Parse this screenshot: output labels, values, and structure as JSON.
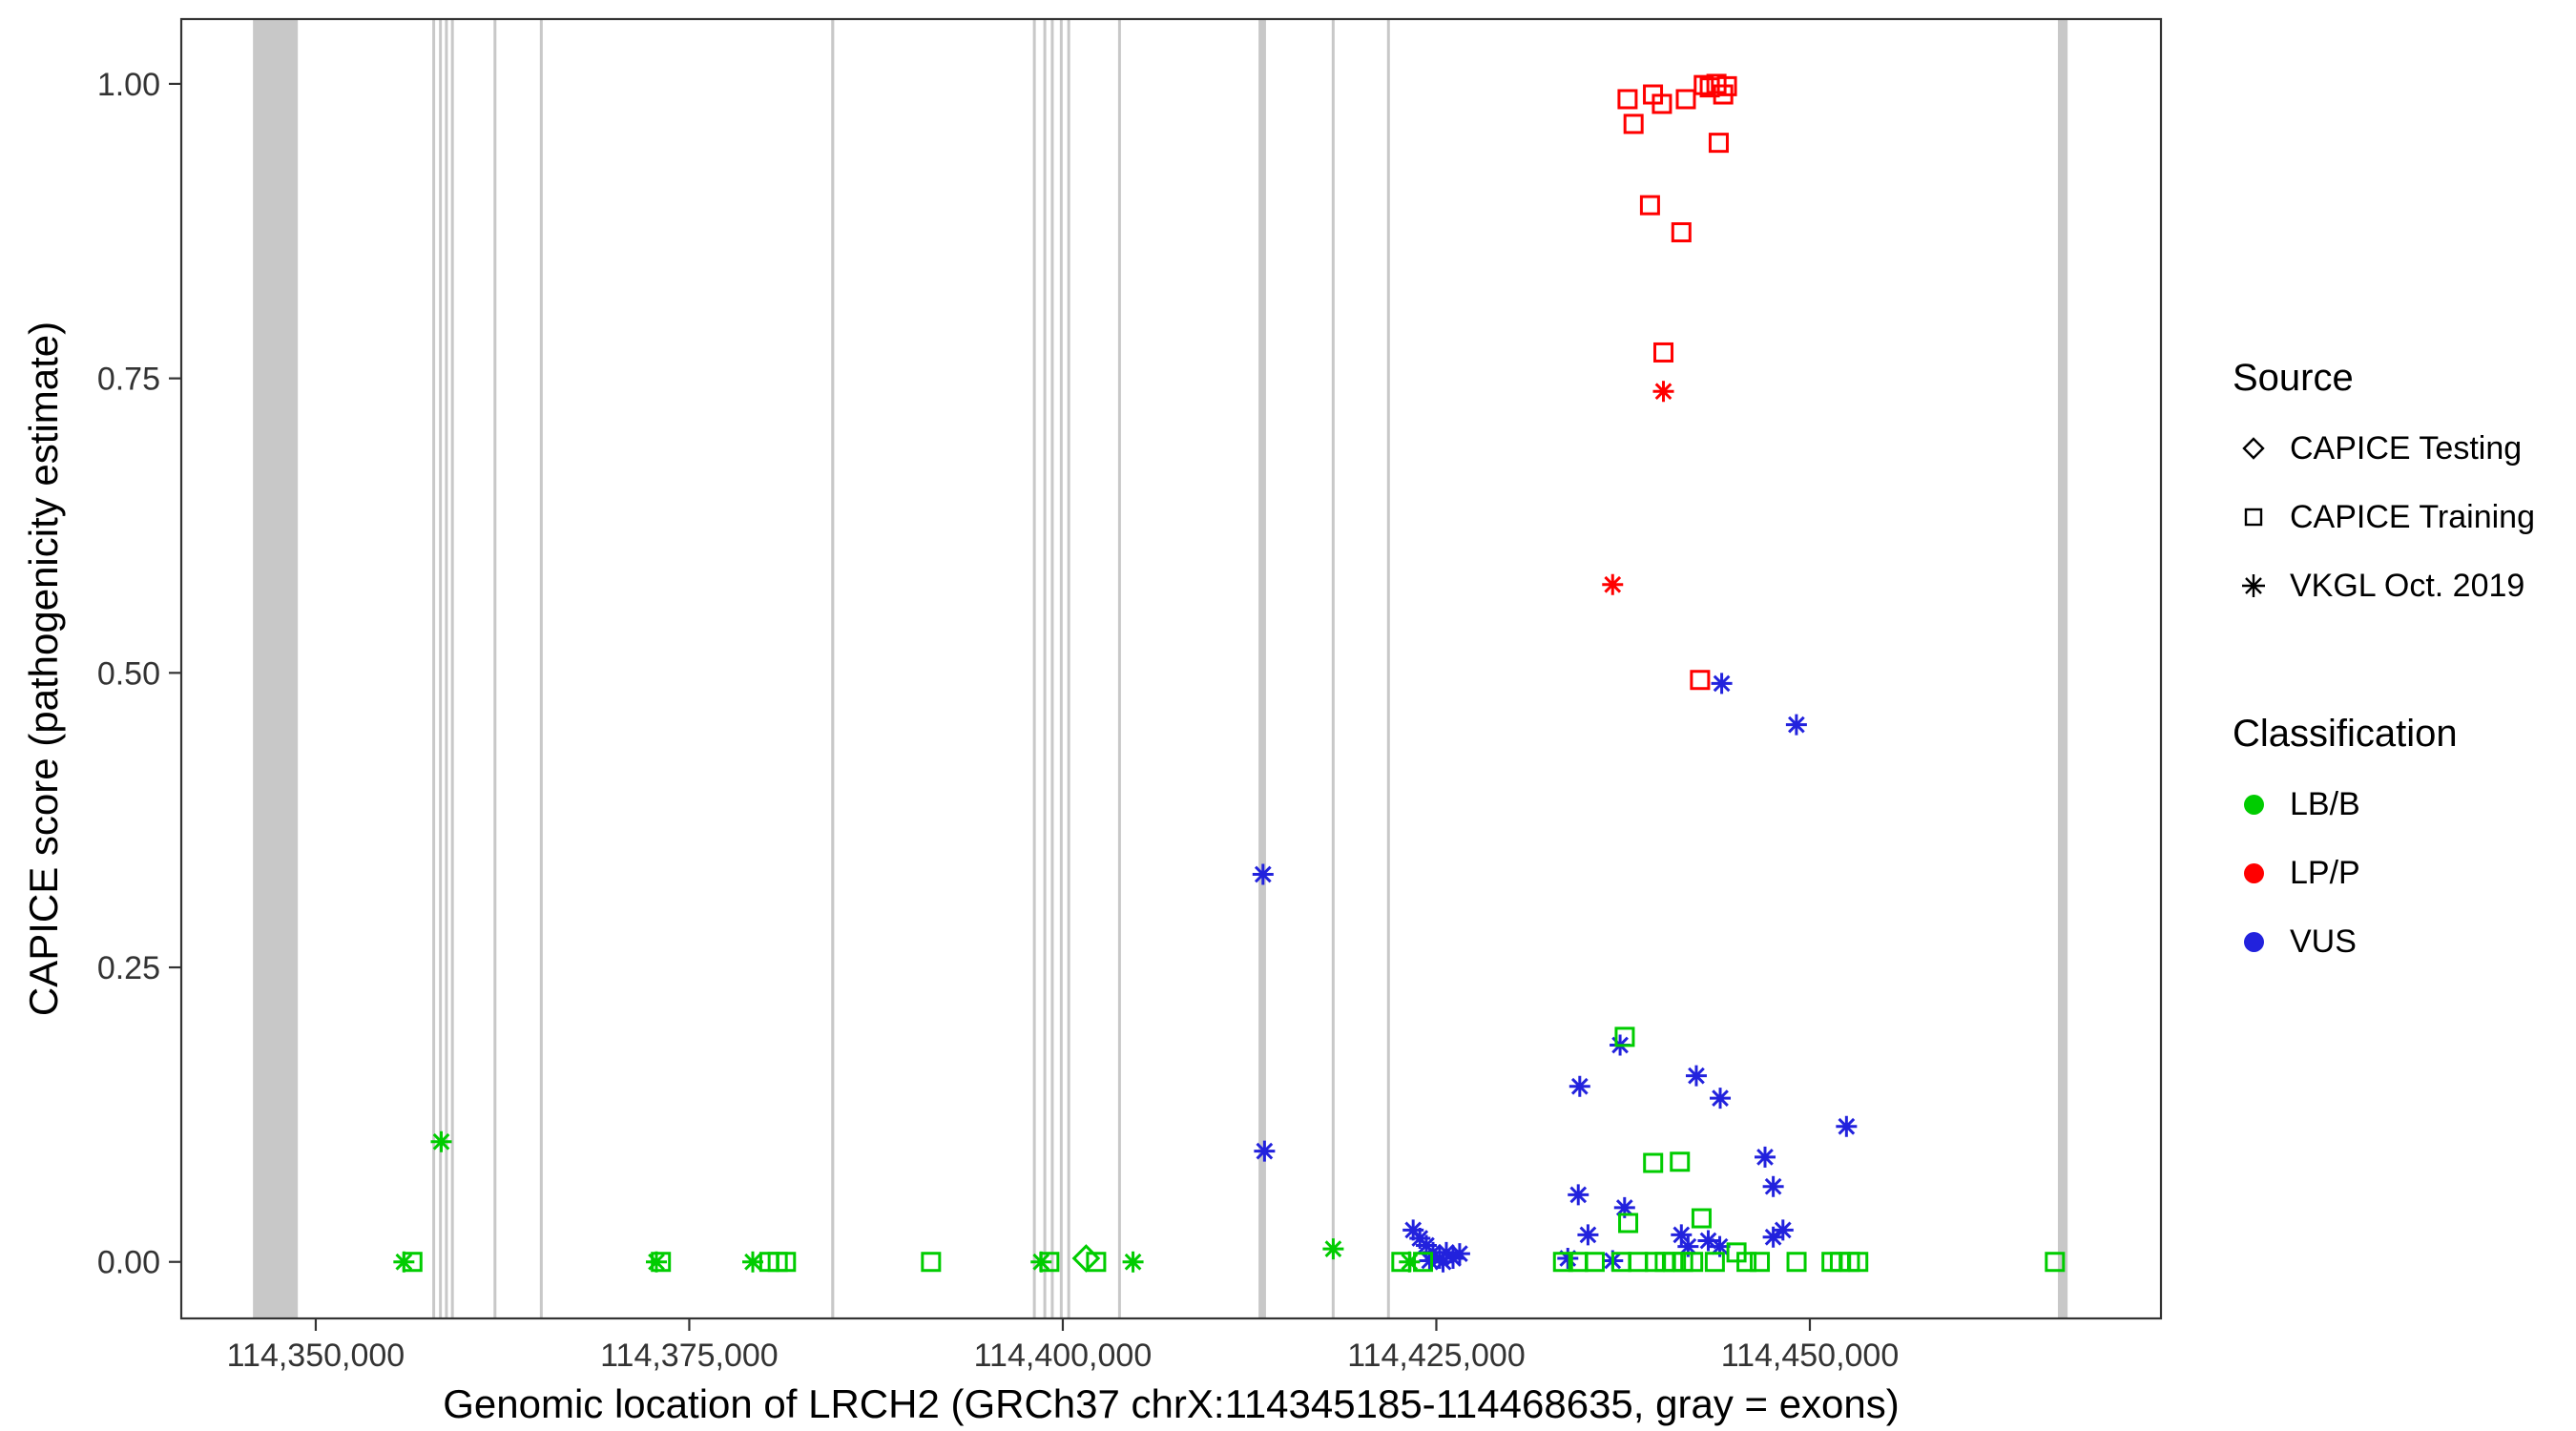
{
  "chart_data": {
    "type": "scatter",
    "title": "",
    "xlabel": "Genomic location of LRCH2 (GRCh37 chrX:114345185-114468635, gray = exons)",
    "ylabel": "CAPICE score (pathogenicity estimate)",
    "xlim": [
      114341000,
      114473500
    ],
    "ylim": [
      -0.048,
      1.055
    ],
    "grid": "off",
    "legend_position": "right",
    "x_ticks": [
      {
        "value": 114350000,
        "label": "114,350,000"
      },
      {
        "value": 114375000,
        "label": "114,375,000"
      },
      {
        "value": 114400000,
        "label": "114,400,000"
      },
      {
        "value": 114425000,
        "label": "114,425,000"
      },
      {
        "value": 114450000,
        "label": "114,450,000"
      }
    ],
    "y_ticks": [
      {
        "value": 0.0,
        "label": "0.00"
      },
      {
        "value": 0.25,
        "label": "0.25"
      },
      {
        "value": 0.5,
        "label": "0.50"
      },
      {
        "value": 0.75,
        "label": "0.75"
      },
      {
        "value": 1.0,
        "label": "1.00"
      }
    ],
    "exon_color": "#c8c8c8",
    "colors": {
      "LB/B": "#00CC00",
      "LP/P": "#FF0000",
      "VUS": "#2222DD"
    },
    "legend": {
      "source": {
        "title": "Source",
        "items": [
          {
            "label": "CAPICE Testing",
            "shape": "diamond"
          },
          {
            "label": "CAPICE Training",
            "shape": "square"
          },
          {
            "label": "VKGL Oct. 2019",
            "shape": "asterisk"
          }
        ]
      },
      "classification": {
        "title": "Classification",
        "items": [
          {
            "label": "LB/B",
            "color_key": "LB/B"
          },
          {
            "label": "LP/P",
            "color_key": "LP/P"
          },
          {
            "label": "VUS",
            "color_key": "VUS"
          }
        ]
      }
    },
    "exons": [
      [
        114345800,
        114348800
      ],
      [
        114357800,
        114357950
      ],
      [
        114358250,
        114358400
      ],
      [
        114358650,
        114358800
      ],
      [
        114359050,
        114359200
      ],
      [
        114361900,
        114362050
      ],
      [
        114365000,
        114365150
      ],
      [
        114384500,
        114384700
      ],
      [
        114398000,
        114398150
      ],
      [
        114398700,
        114398850
      ],
      [
        114399200,
        114399350
      ],
      [
        114399800,
        114399950
      ],
      [
        114400300,
        114400450
      ],
      [
        114403700,
        114403850
      ],
      [
        114413100,
        114413600
      ],
      [
        114418000,
        114418150
      ],
      [
        114421700,
        114421850
      ],
      [
        114466600,
        114467250
      ]
    ],
    "series": [
      {
        "name": "LP/P CAPICE Training",
        "shape": "square",
        "cls": "LP/P",
        "points": [
          [
            114437800,
            0.987
          ],
          [
            114438200,
            0.966
          ],
          [
            114439500,
            0.991
          ],
          [
            114440100,
            0.983
          ],
          [
            114441700,
            0.987
          ],
          [
            114442900,
            0.999
          ],
          [
            114443300,
            0.997
          ],
          [
            114443750,
            1.0
          ],
          [
            114444200,
            0.991
          ],
          [
            114444450,
            0.998
          ],
          [
            114443900,
            0.95
          ],
          [
            114439300,
            0.897
          ],
          [
            114441400,
            0.874
          ],
          [
            114440200,
            0.772
          ],
          [
            114442650,
            0.494
          ]
        ]
      },
      {
        "name": "LP/P VKGL Oct. 2019",
        "shape": "asterisk",
        "cls": "LP/P",
        "points": [
          [
            114440200,
            0.739
          ],
          [
            114436800,
            0.575
          ]
        ]
      },
      {
        "name": "VUS VKGL Oct. 2019",
        "shape": "asterisk",
        "cls": "VUS",
        "points": [
          [
            114444100,
            0.491
          ],
          [
            114449100,
            0.456
          ],
          [
            114413400,
            0.329
          ],
          [
            114413500,
            0.094
          ],
          [
            114437300,
            0.184
          ],
          [
            114434600,
            0.149
          ],
          [
            114442400,
            0.158
          ],
          [
            114444000,
            0.139
          ],
          [
            114452450,
            0.115
          ],
          [
            114447000,
            0.089
          ],
          [
            114447550,
            0.064
          ],
          [
            114434500,
            0.057
          ],
          [
            114437600,
            0.046
          ],
          [
            114441400,
            0.023
          ],
          [
            114435150,
            0.023
          ],
          [
            114433800,
            0.003
          ],
          [
            114436800,
            0.001
          ],
          [
            114443970,
            0.013
          ],
          [
            114443200,
            0.018
          ],
          [
            114447550,
            0.021
          ],
          [
            114448200,
            0.027
          ],
          [
            114423450,
            0.027
          ],
          [
            114423900,
            0.02
          ],
          [
            114424330,
            0.014
          ],
          [
            114424780,
            0.008
          ],
          [
            114425220,
            0.003
          ],
          [
            114425670,
            0.008
          ],
          [
            114426120,
            0.003
          ],
          [
            114426560,
            0.007
          ],
          [
            114424550,
            0.001
          ],
          [
            114425450,
            0.0
          ],
          [
            114441850,
            0.013
          ]
        ]
      },
      {
        "name": "LB/B VKGL Oct. 2019",
        "shape": "asterisk",
        "cls": "LB/B",
        "points": [
          [
            114358400,
            0.102
          ],
          [
            114355900,
            0.0
          ],
          [
            114372800,
            0.0
          ],
          [
            114379250,
            0.0
          ],
          [
            114398550,
            0.0
          ],
          [
            114404700,
            0.0
          ],
          [
            114418100,
            0.011
          ],
          [
            114423200,
            0.0
          ]
        ]
      },
      {
        "name": "LB/B CAPICE Training",
        "shape": "square",
        "cls": "LB/B",
        "points": [
          [
            114356470,
            0.0
          ],
          [
            114373100,
            0.0
          ],
          [
            114380360,
            0.0
          ],
          [
            114380920,
            0.0
          ],
          [
            114381470,
            0.0
          ],
          [
            114391180,
            0.0
          ],
          [
            114399100,
            0.0
          ],
          [
            114402230,
            0.0
          ],
          [
            114437610,
            0.191
          ],
          [
            114439510,
            0.084
          ],
          [
            114441300,
            0.085
          ],
          [
            114437840,
            0.033
          ],
          [
            114442750,
            0.037
          ],
          [
            114445090,
            0.008
          ],
          [
            114433480,
            0.0
          ],
          [
            114434490,
            0.0
          ],
          [
            114435600,
            0.0
          ],
          [
            114437390,
            0.0
          ],
          [
            114438500,
            0.0
          ],
          [
            114439620,
            0.0
          ],
          [
            114440290,
            0.0
          ],
          [
            114440850,
            0.0
          ],
          [
            114441520,
            0.0
          ],
          [
            114442190,
            0.0
          ],
          [
            114443640,
            0.0
          ],
          [
            114445760,
            0.0
          ],
          [
            114446650,
            0.0
          ],
          [
            114449110,
            0.0
          ],
          [
            114451450,
            0.0
          ],
          [
            114452010,
            0.0
          ],
          [
            114452680,
            0.0
          ],
          [
            114453240,
            0.0
          ],
          [
            114466400,
            0.0
          ],
          [
            114422660,
            0.0
          ],
          [
            114424110,
            0.0
          ]
        ]
      },
      {
        "name": "LB/B CAPICE Testing",
        "shape": "diamond",
        "cls": "LB/B",
        "points": [
          [
            114401560,
            0.003
          ]
        ]
      }
    ]
  }
}
